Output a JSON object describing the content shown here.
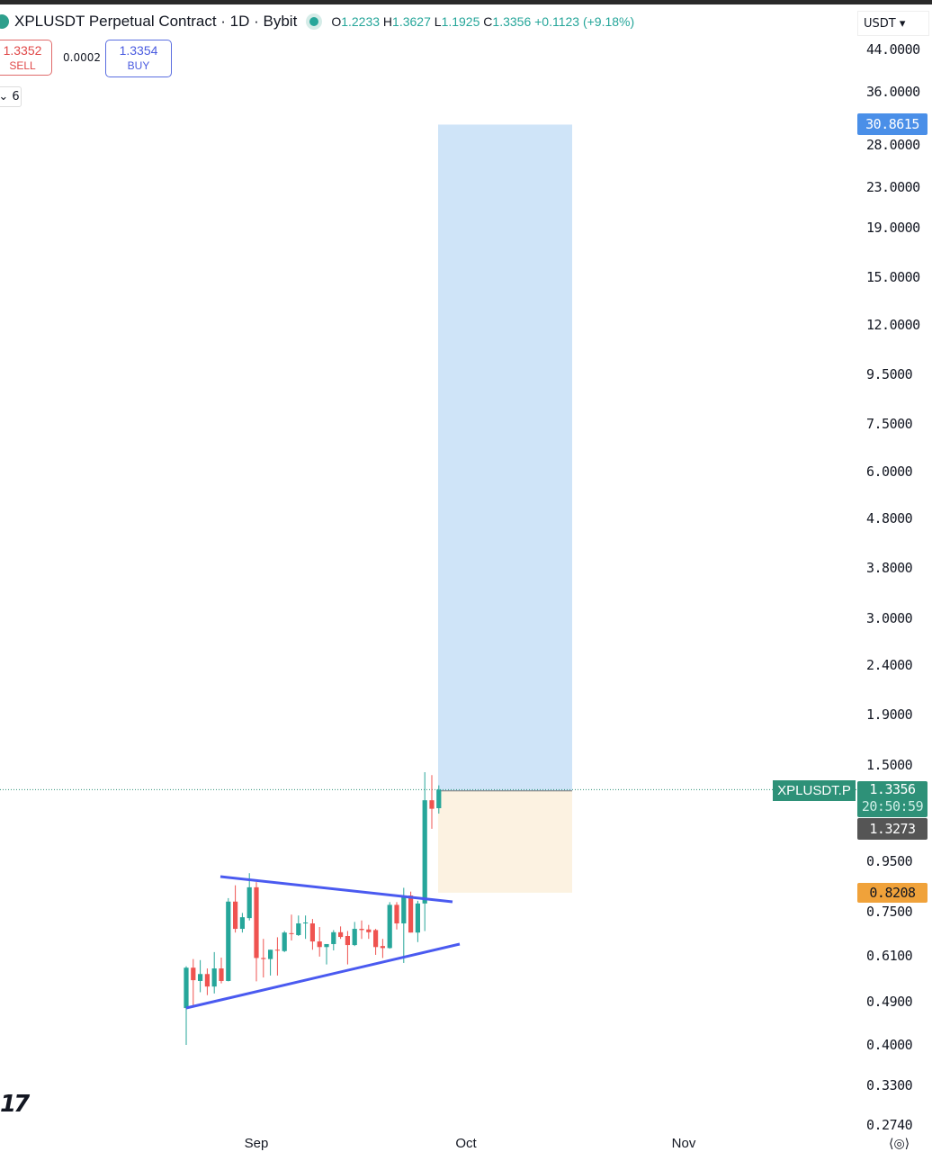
{
  "header": {
    "symbol_title": "XPLUSDT Perpetual Contract · 1D · Bybit",
    "ohlc": {
      "o_label": "O",
      "o": "1.2233",
      "h_label": "H",
      "h": "1.3627",
      "l_label": "L",
      "l": "1.1925",
      "c_label": "C",
      "c": "1.3356",
      "change": "+0.1123 (+9.18%)"
    },
    "sell_price": "1.3352",
    "sell_label": "SELL",
    "spread": "0.0002",
    "buy_price": "1.3354",
    "buy_label": "BUY",
    "indicator_toggle": "6",
    "currency": "USDT"
  },
  "colors": {
    "up": "#26a69a",
    "down": "#ef5350",
    "trendline": "#4a5af0",
    "target_zone": "#cfe4f8",
    "stop_zone": "#fcf2e1",
    "target_tag": "#4a8fe8",
    "stop_tag": "#f0a23a",
    "price_tag": "#2e9178",
    "entry_tag": "#555555"
  },
  "chart_data": {
    "type": "candlestick",
    "scale": "log",
    "ylim": [
      0.274,
      44
    ],
    "y_ticks": [
      "44.0000",
      "36.0000",
      "28.0000",
      "23.0000",
      "19.0000",
      "15.0000",
      "12.0000",
      "9.5000",
      "7.5000",
      "6.0000",
      "4.8000",
      "3.8000",
      "3.0000",
      "2.4000",
      "1.9000",
      "1.5000",
      "0.9500",
      "0.7500",
      "0.6100",
      "0.4900",
      "0.4000",
      "0.3300",
      "0.2740"
    ],
    "x_ticks": [
      "Sep",
      "Oct",
      "Nov"
    ],
    "candles": [
      [
        0.476,
        0.58,
        0.4,
        0.576
      ],
      [
        0.576,
        0.6,
        0.48,
        0.543
      ],
      [
        0.541,
        0.597,
        0.513,
        0.559
      ],
      [
        0.559,
        0.574,
        0.506,
        0.527
      ],
      [
        0.527,
        0.62,
        0.51,
        0.574
      ],
      [
        0.574,
        0.604,
        0.535,
        0.541
      ],
      [
        0.541,
        0.8,
        0.54,
        0.787
      ],
      [
        0.787,
        0.85,
        0.68,
        0.692
      ],
      [
        0.692,
        0.746,
        0.68,
        0.731
      ],
      [
        0.728,
        0.9,
        0.72,
        0.842
      ],
      [
        0.842,
        0.863,
        0.54,
        0.603
      ],
      [
        0.603,
        0.66,
        0.55,
        0.6
      ],
      [
        0.6,
        0.627,
        0.555,
        0.627
      ],
      [
        0.627,
        0.665,
        0.555,
        0.625
      ],
      [
        0.623,
        0.685,
        0.62,
        0.68
      ],
      [
        0.678,
        0.74,
        0.655,
        0.676
      ],
      [
        0.672,
        0.737,
        0.669,
        0.71
      ],
      [
        0.71,
        0.737,
        0.66,
        0.713
      ],
      [
        0.71,
        0.725,
        0.627,
        0.652
      ],
      [
        0.652,
        0.698,
        0.607,
        0.635
      ],
      [
        0.635,
        0.644,
        0.585,
        0.644
      ],
      [
        0.644,
        0.688,
        0.625,
        0.681
      ],
      [
        0.681,
        0.7,
        0.66,
        0.666
      ],
      [
        0.669,
        0.685,
        0.585,
        0.641
      ],
      [
        0.641,
        0.715,
        0.638,
        0.692
      ],
      [
        0.692,
        0.72,
        0.66,
        0.688
      ],
      [
        0.69,
        0.705,
        0.66,
        0.681
      ],
      [
        0.688,
        0.692,
        0.612,
        0.635
      ],
      [
        0.638,
        0.66,
        0.603,
        0.632
      ],
      [
        0.632,
        0.785,
        0.63,
        0.775
      ],
      [
        0.775,
        0.785,
        0.69,
        0.71
      ],
      [
        0.71,
        0.84,
        0.589,
        0.81
      ],
      [
        0.81,
        0.825,
        0.68,
        0.68
      ],
      [
        0.68,
        0.79,
        0.65,
        0.78
      ],
      [
        0.78,
        1.45,
        0.685,
        1.27
      ],
      [
        1.27,
        1.43,
        1.11,
        1.22
      ],
      [
        1.2233,
        1.3627,
        1.1925,
        1.3356
      ]
    ],
    "position": {
      "target": "30.8615",
      "entry": "1.3273",
      "stop": "0.8208"
    },
    "last_price": {
      "symbol": "XPLUSDT.P",
      "price": "1.3356",
      "countdown": "20:50:59"
    }
  }
}
